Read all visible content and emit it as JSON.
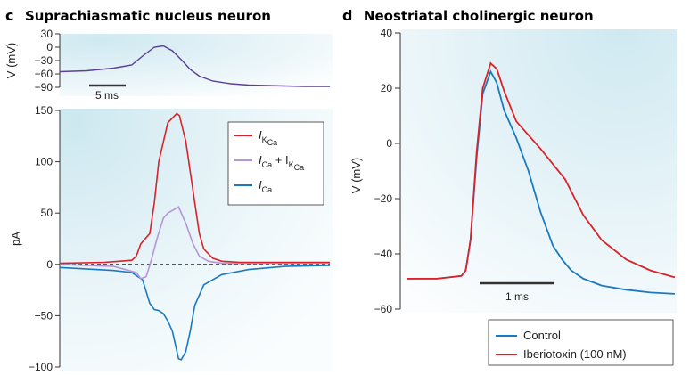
{
  "panels": {
    "c": {
      "letter": "c",
      "title": "Suprachiasmatic nucleus neuron"
    },
    "d": {
      "letter": "d",
      "title": "Neostriatal cholinergic neuron"
    }
  },
  "colors": {
    "red": "#d8232a",
    "blue": "#1a7abf",
    "lilac": "#b596d6",
    "purple": "#5c3e96",
    "bg_tint": "#d9eef4"
  },
  "chart_data": [
    {
      "id": "c-voltage",
      "type": "line",
      "ylabel": "V (mV)",
      "ylim": [
        -90,
        30
      ],
      "yticks": [
        30,
        0,
        -30,
        -60,
        -90
      ],
      "yticklabels": [
        "30",
        "0",
        "−30",
        "−60",
        "−90"
      ],
      "scalebar_label": "5 ms",
      "series": [
        {
          "color": "purple",
          "x": [
            0,
            3,
            6,
            8,
            9.2,
            10.5,
            11.5,
            12.5,
            13.5,
            14.5,
            15.5,
            17,
            19,
            21,
            23,
            25,
            27,
            30
          ],
          "y": [
            -55,
            -53,
            -47,
            -40,
            -20,
            0,
            3,
            -8,
            -28,
            -50,
            -65,
            -76,
            -82,
            -85,
            -86,
            -87,
            -88,
            -88
          ]
        }
      ]
    },
    {
      "id": "c-currents",
      "type": "line",
      "ylabel": "pA",
      "ylim": [
        -100,
        150
      ],
      "yticks": [
        150,
        100,
        50,
        0,
        -50,
        -100
      ],
      "yticklabels": [
        "150",
        "100",
        "50",
        "0",
        "−50",
        "−100"
      ],
      "legend": [
        {
          "color": "red",
          "name": "I",
          "sub": "K",
          "subsub": "Ca"
        },
        {
          "color": "lilac",
          "name": "I",
          "sub": "Ca",
          "plus": " + I",
          "sub2": "K",
          "subsub2": "Ca"
        },
        {
          "color": "blue",
          "name": "I",
          "sub": "Ca"
        }
      ],
      "series": [
        {
          "color": "red",
          "x": [
            0,
            5,
            8,
            8.5,
            9,
            10,
            10.5,
            11,
            12,
            13,
            13.3,
            14,
            15,
            15.5,
            16,
            17,
            18,
            20,
            22,
            30
          ],
          "y": [
            1,
            2,
            4,
            8,
            20,
            30,
            60,
            100,
            138,
            147,
            145,
            120,
            60,
            30,
            15,
            6,
            3,
            2,
            2,
            2
          ]
        },
        {
          "color": "lilac",
          "x": [
            0,
            6,
            8.5,
            9,
            9.6,
            10.2,
            10.8,
            11.5,
            12,
            13,
            13.2,
            14,
            14.8,
            15.5,
            16.5,
            18,
            20,
            30
          ],
          "y": [
            0,
            -2,
            -8,
            -14,
            -12,
            5,
            25,
            45,
            50,
            55,
            56,
            40,
            20,
            8,
            3,
            1,
            1,
            1
          ]
        },
        {
          "color": "blue",
          "x": [
            0,
            4,
            6,
            8,
            9.2,
            10,
            10.5,
            11,
            11.5,
            12,
            12.5,
            13.2,
            13.5,
            14,
            14.5,
            15,
            16,
            18,
            21,
            25,
            30
          ],
          "y": [
            -3,
            -5,
            -6,
            -8,
            -15,
            -38,
            -44,
            -45,
            -48,
            -55,
            -65,
            -92,
            -93,
            -85,
            -65,
            -40,
            -20,
            -10,
            -5,
            -2,
            -1
          ]
        }
      ],
      "zero_line": "dashed"
    },
    {
      "id": "d-ap",
      "type": "line",
      "ylabel": "V (mV)",
      "ylim": [
        -60,
        40
      ],
      "yticks": [
        40,
        20,
        0,
        -20,
        -40,
        -60
      ],
      "yticklabels": [
        "40",
        "20",
        "0",
        "−20",
        "−40",
        "−60"
      ],
      "scalebar_label": "1 ms",
      "legend": [
        {
          "color": "blue",
          "name": "Control"
        },
        {
          "color": "red",
          "name": "Iberiotoxin (100 nM)"
        }
      ],
      "series": [
        {
          "name": "Control",
          "color": "blue",
          "x": [
            0,
            0.5,
            0.9,
            0.97,
            1.05,
            1.15,
            1.25,
            1.38,
            1.48,
            1.6,
            1.8,
            2.0,
            2.2,
            2.4,
            2.55,
            2.7,
            2.9,
            3.2,
            3.6,
            4.0,
            4.4
          ],
          "y": [
            -49,
            -49,
            -48,
            -46,
            -35,
            -5,
            18,
            26,
            22,
            12,
            2,
            -10,
            -25,
            -37,
            -42,
            -46,
            -49,
            -51.5,
            -53,
            -54,
            -54.5
          ]
        },
        {
          "name": "Iberiotoxin (100 nM)",
          "color": "red",
          "x": [
            0,
            0.5,
            0.9,
            0.97,
            1.05,
            1.15,
            1.25,
            1.38,
            1.48,
            1.6,
            1.8,
            2.2,
            2.6,
            2.9,
            3.2,
            3.6,
            4.0,
            4.4
          ],
          "y": [
            -49,
            -49,
            -48,
            -46,
            -35,
            -3,
            20,
            29,
            27,
            19,
            8,
            -2,
            -13,
            -26,
            -35,
            -42,
            -46,
            -48.5
          ]
        }
      ]
    }
  ]
}
